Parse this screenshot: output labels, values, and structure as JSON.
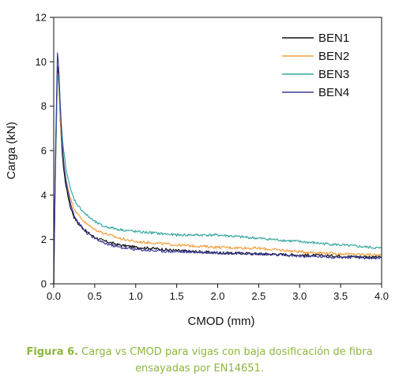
{
  "chart_data": {
    "type": "line",
    "xlabel": "CMOD (mm)",
    "ylabel": "Carga (kN)",
    "xlim": [
      0,
      4
    ],
    "ylim": [
      0,
      12
    ],
    "xticks": [
      "0.0",
      "0.5",
      "1.0",
      "1.5",
      "2.0",
      "2.5",
      "3.0",
      "3.5",
      "4.0"
    ],
    "yticks": [
      "0",
      "2",
      "4",
      "6",
      "8",
      "10",
      "12"
    ],
    "grid": false,
    "legend_position": "top-right",
    "series": [
      {
        "name": "BEN1",
        "color": "#111111",
        "x": [
          0,
          0.02,
          0.045,
          0.06,
          0.08,
          0.1,
          0.12,
          0.15,
          0.2,
          0.25,
          0.3,
          0.4,
          0.5,
          0.6,
          0.8,
          1.0,
          1.2,
          1.5,
          2.0,
          2.5,
          3.0,
          3.5,
          4.0
        ],
        "y": [
          0,
          5.2,
          9.8,
          9.2,
          7.4,
          6.1,
          5.2,
          4.4,
          3.5,
          3.0,
          2.7,
          2.35,
          2.1,
          1.95,
          1.75,
          1.65,
          1.6,
          1.5,
          1.4,
          1.35,
          1.3,
          1.25,
          1.2
        ]
      },
      {
        "name": "BEN2",
        "color": "#f0a040",
        "x": [
          0,
          0.02,
          0.045,
          0.06,
          0.08,
          0.1,
          0.12,
          0.15,
          0.2,
          0.25,
          0.3,
          0.4,
          0.5,
          0.6,
          0.8,
          1.0,
          1.2,
          1.5,
          2.0,
          2.5,
          3.0,
          3.5,
          4.0
        ],
        "y": [
          0,
          5.0,
          9.5,
          9.0,
          7.5,
          6.3,
          5.5,
          4.7,
          3.9,
          3.4,
          3.1,
          2.7,
          2.45,
          2.3,
          2.05,
          1.9,
          1.85,
          1.75,
          1.65,
          1.6,
          1.45,
          1.35,
          1.3
        ]
      },
      {
        "name": "BEN3",
        "color": "#3aa8a0",
        "x": [
          0,
          0.02,
          0.045,
          0.06,
          0.08,
          0.1,
          0.12,
          0.15,
          0.2,
          0.25,
          0.3,
          0.4,
          0.5,
          0.6,
          0.8,
          1.0,
          1.2,
          1.5,
          2.0,
          2.5,
          3.0,
          3.5,
          4.0
        ],
        "y": [
          0,
          5.0,
          9.4,
          9.1,
          8.0,
          6.8,
          6.0,
          5.2,
          4.3,
          3.8,
          3.5,
          3.1,
          2.8,
          2.6,
          2.45,
          2.35,
          2.3,
          2.2,
          2.2,
          2.05,
          1.9,
          1.75,
          1.6
        ]
      },
      {
        "name": "BEN4",
        "color": "#3a3a9a",
        "x": [
          0,
          0.02,
          0.045,
          0.06,
          0.08,
          0.1,
          0.12,
          0.15,
          0.2,
          0.25,
          0.3,
          0.4,
          0.5,
          0.6,
          0.8,
          1.0,
          1.2,
          1.5,
          2.0,
          2.5,
          3.0,
          3.5,
          4.0
        ],
        "y": [
          0,
          5.5,
          10.4,
          9.8,
          8.0,
          6.5,
          5.5,
          4.6,
          3.7,
          3.1,
          2.75,
          2.3,
          2.05,
          1.85,
          1.65,
          1.55,
          1.5,
          1.45,
          1.4,
          1.35,
          1.25,
          1.2,
          1.15
        ]
      }
    ]
  },
  "caption": {
    "label": "Figura 6.",
    "line1": " Carga vs CMOD para vigas con baja dosificación de fibra",
    "line2": "ensayadas por EN14651."
  }
}
